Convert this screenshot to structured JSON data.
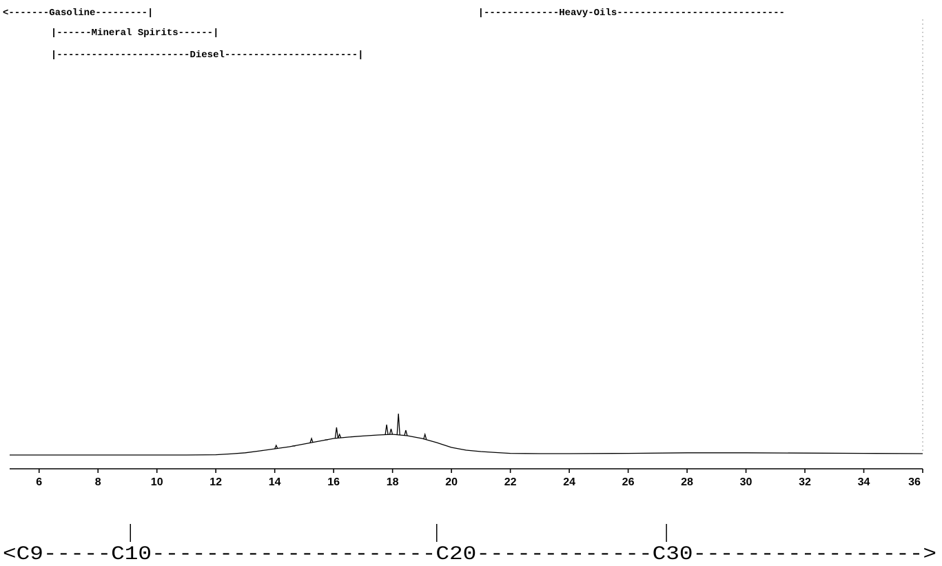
{
  "chart_data": {
    "type": "line",
    "title": "",
    "xlabel": "",
    "ylabel": "",
    "xlim": [
      5,
      36
    ],
    "ylim": [
      0,
      100
    ],
    "grid": false,
    "x_ticks": [
      6,
      8,
      10,
      12,
      14,
      16,
      18,
      20,
      22,
      24,
      26,
      28,
      30,
      32,
      34,
      36
    ],
    "series": [
      {
        "x": [
          5,
          8,
          10,
          11,
          12,
          12.5,
          13,
          13.5,
          14,
          14.5,
          15,
          15.5,
          16,
          16.5,
          17,
          17.5,
          18,
          18.5,
          19,
          19.5,
          20,
          20.5,
          21,
          21.5,
          22,
          23,
          24,
          26,
          28,
          30,
          32,
          34,
          36
        ],
        "y": [
          0,
          0,
          0,
          0,
          0.2,
          0.8,
          1.6,
          3,
          4.5,
          6,
          8,
          10,
          12,
          13,
          13.8,
          14.5,
          15,
          14,
          12,
          9,
          5.5,
          3.5,
          2.5,
          1.8,
          1.2,
          1,
          1,
          1.2,
          1.6,
          1.6,
          1.4,
          1.2,
          1
        ],
        "peaks": [
          {
            "x": 14.05,
            "y": 7
          },
          {
            "x": 14.65,
            "y": 6.5
          },
          {
            "x": 15.25,
            "y": 12
          },
          {
            "x": 15.75,
            "y": 11
          },
          {
            "x": 16.1,
            "y": 20
          },
          {
            "x": 16.2,
            "y": 15
          },
          {
            "x": 17.8,
            "y": 22
          },
          {
            "x": 17.95,
            "y": 19
          },
          {
            "x": 18.2,
            "y": 30
          },
          {
            "x": 18.45,
            "y": 18
          },
          {
            "x": 19.1,
            "y": 15
          }
        ]
      }
    ],
    "ranges": [
      {
        "text": "<-------Gasoline---------|",
        "start": 5,
        "row": 1
      },
      {
        "text": "|-------------Heavy-Oils-----------------------------",
        "start": 20.9,
        "row": 1
      },
      {
        "text": "|------Mineral Spirits------|",
        "start": 6.4,
        "row": 2
      },
      {
        "text": "|-----------------------Diesel-----------------------|",
        "start": 6.4,
        "row": 3
      }
    ],
    "carbon_scale": {
      "text": "<C9-----C10---------------------C20-------------C30----------------->",
      "markers": [
        {
          "label": "C10",
          "x": 9.1
        },
        {
          "label": "C20",
          "x": 19.5
        },
        {
          "label": "C30",
          "x": 27.3
        }
      ]
    }
  }
}
